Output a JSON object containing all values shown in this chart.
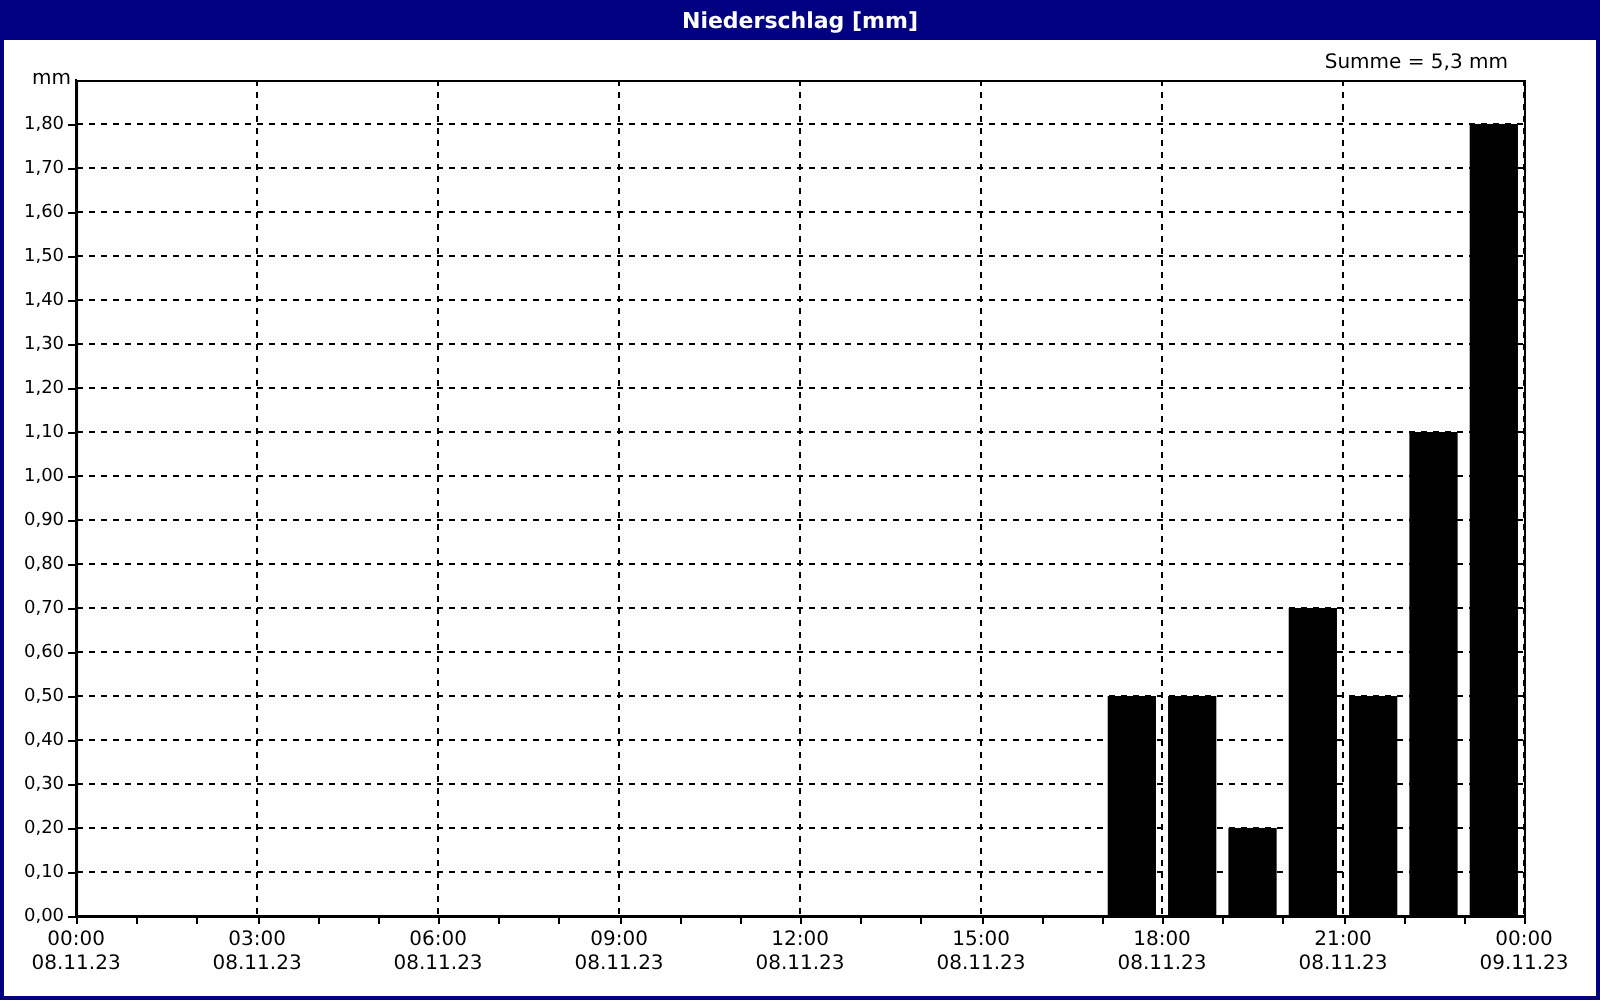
{
  "chart_data": {
    "type": "bar",
    "title": "Niederschlag [mm]",
    "ylabel": "mm",
    "annotations": [
      "Summe = 5,3 mm"
    ],
    "x": [
      "--11-08T17:30",
      "--11-08T18:30",
      "--11-08T19:30",
      "--11-08T20:30",
      "--11-08T21:30",
      "--11-08T22:30",
      "--11-08T23:30"
    ],
    "values": [
      0.5,
      0.5,
      0.2,
      0.7,
      0.5,
      1.1,
      1.8
    ],
    "color": "#000000",
    "xlim": [
      "--11-08T00:00",
      "--11-09T00:00"
    ],
    "xticks": [
      {
        "value": "--11-08T00:00",
        "label": "00:00\n08.11.23"
      },
      {
        "value": "--11-08T01:00",
        "label": null
      },
      {
        "value": "--11-08T02:00",
        "label": null
      },
      {
        "value": "--11-08T03:00",
        "label": "03:00\n08.11.23"
      },
      {
        "value": "--11-08T04:00",
        "label": null
      },
      {
        "value": "--11-08T05:00",
        "label": null
      },
      {
        "value": "--11-08T06:00",
        "label": "06:00\n08.11.23"
      },
      {
        "value": "--11-08T07:00",
        "label": null
      },
      {
        "value": "--11-08T08:00",
        "label": null
      },
      {
        "value": "--11-08T09:00",
        "label": "09:00\n08.11.23"
      },
      {
        "value": "--11-08T10:00",
        "label": null
      },
      {
        "value": "--11-08T11:00",
        "label": null
      },
      {
        "value": "--11-08T12:00",
        "label": "12:00\n08.11.23"
      },
      {
        "value": "--11-08T13:00",
        "label": null
      },
      {
        "value": "--11-08T14:00",
        "label": null
      },
      {
        "value": "--11-08T15:00",
        "label": "15:00\n08.11.23"
      },
      {
        "value": "--11-08T16:00",
        "label": null
      },
      {
        "value": "--11-08T17:00",
        "label": null
      },
      {
        "value": "--11-08T18:00",
        "label": "18:00\n08.11.23"
      },
      {
        "value": "--11-08T19:00",
        "label": null
      },
      {
        "value": "--11-08T20:00",
        "label": null
      },
      {
        "value": "--11-08T21:00",
        "label": "21:00\n08.11.23"
      },
      {
        "value": "--11-08T22:00",
        "label": null
      },
      {
        "value": "--11-08T23:00",
        "label": null
      },
      {
        "value": "--11-09T00:00",
        "label": "00:00\n09.11.23"
      }
    ],
    "ylim": [
      0,
      1.9
    ],
    "yticks": [
      {
        "value": 0,
        "label": "0,00"
      },
      {
        "value": 0.1,
        "label": "0,10"
      },
      {
        "value": 0.2,
        "label": "0,20"
      },
      {
        "value": 0.3,
        "label": "0,30"
      },
      {
        "value": 0.4,
        "label": "0,40"
      },
      {
        "value": 0.5,
        "label": "0,50"
      },
      {
        "value": 0.6,
        "label": "0,60"
      },
      {
        "value": 0.7,
        "label": "0,70"
      },
      {
        "value": 0.8,
        "label": "0,80"
      },
      {
        "value": 0.9,
        "label": "0,90"
      },
      {
        "value": 1,
        "label": "1,00"
      },
      {
        "value": 1.1,
        "label": "1,10"
      },
      {
        "value": 1.2,
        "label": "1,20"
      },
      {
        "value": 1.3,
        "label": "1,30"
      },
      {
        "value": 1.4,
        "label": "1,40"
      },
      {
        "value": 1.5,
        "label": "1,50"
      },
      {
        "value": 1.6,
        "label": "1,60"
      },
      {
        "value": 1.7,
        "label": "1,70"
      },
      {
        "value": 1.8,
        "label": "1,80"
      }
    ],
    "grid": true,
    "legend": false
  }
}
